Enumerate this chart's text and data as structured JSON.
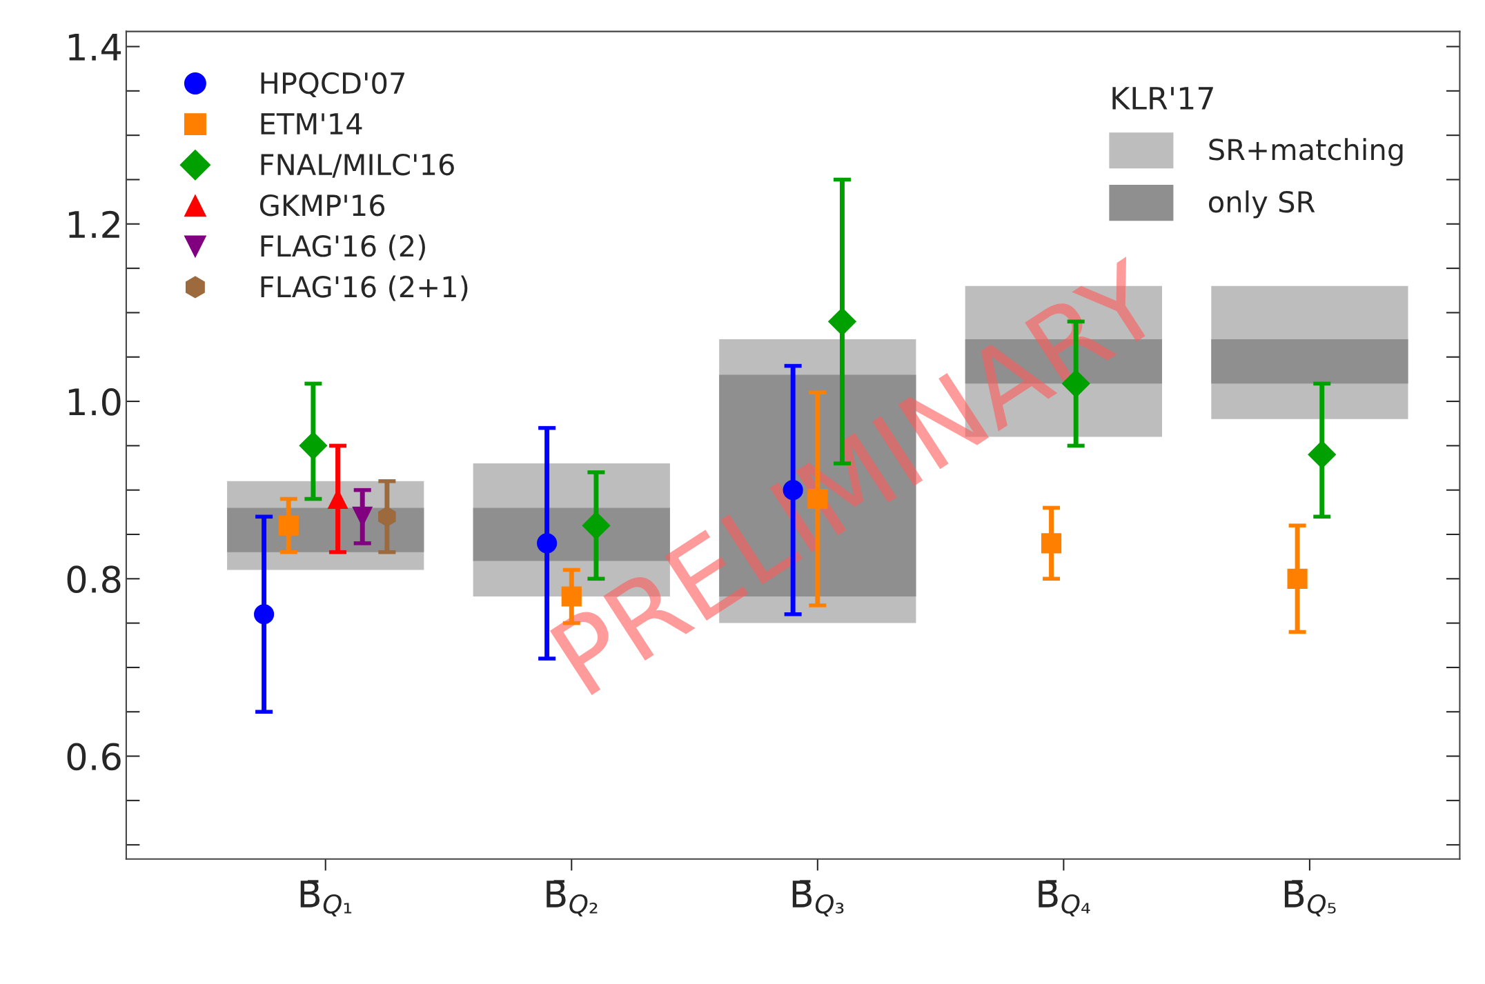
{
  "chart_data": {
    "type": "scatter",
    "categories": [
      "B̄$_{Q₁}$",
      "B̄$_{Q₂}$",
      "B̄$_{Q₃}$",
      "B̄$_{Q₄}$",
      "B̄$_{Q₅}$"
    ],
    "series": [
      {
        "name": "SR+matching",
        "type": "bar",
        "color": "#bdbdbd",
        "base": [
          0.81,
          0.78,
          0.75,
          0.96,
          0.98
        ],
        "values": [
          0.1,
          0.15,
          0.32,
          0.17,
          0.15
        ]
      },
      {
        "name": "only SR",
        "type": "bar",
        "color": "#8f8f8f",
        "base": [
          0.83,
          0.82,
          0.78,
          1.02,
          1.02
        ],
        "values": [
          0.05,
          0.06,
          0.25,
          0.05,
          0.05
        ]
      },
      {
        "name": "HPQCD'07",
        "marker": "circle",
        "color": "#0000ff",
        "values": [
          0.76,
          0.84,
          0.9,
          null,
          null
        ],
        "errors": [
          [
            0.65,
            0.87
          ],
          [
            0.71,
            0.97
          ],
          [
            0.76,
            1.04
          ],
          null,
          null
        ]
      },
      {
        "name": "ETM'14",
        "marker": "square",
        "color": "#ff8000",
        "values": [
          0.86,
          0.78,
          0.89,
          0.84,
          0.8
        ],
        "errors": [
          [
            0.83,
            0.89
          ],
          [
            0.75,
            0.81
          ],
          [
            0.77,
            1.01
          ],
          [
            0.8,
            0.88
          ],
          [
            0.74,
            0.86
          ]
        ]
      },
      {
        "name": "FNAL/MILC'16",
        "marker": "diamond",
        "color": "#00a000",
        "values": [
          0.95,
          0.86,
          1.09,
          1.02,
          0.94
        ],
        "errors": [
          [
            0.89,
            1.02
          ],
          [
            0.8,
            0.92
          ],
          [
            0.93,
            1.25
          ],
          [
            0.95,
            1.09
          ],
          [
            0.87,
            1.02
          ]
        ]
      },
      {
        "name": "GKMP'16",
        "marker": "triangle",
        "color": "#ff0000",
        "values": [
          0.89,
          null,
          null,
          null,
          null
        ],
        "errors": [
          [
            0.83,
            0.95
          ],
          null,
          null,
          null,
          null
        ]
      },
      {
        "name": "FLAG'16 (2)",
        "marker": "triangle_down",
        "color": "#800080",
        "values": [
          0.87,
          null,
          null,
          null,
          null
        ],
        "errors": [
          [
            0.84,
            0.9
          ],
          null,
          null,
          null,
          null
        ]
      },
      {
        "name": "FLAG'16 (2+1)",
        "color": "#9c6a3c",
        "values": [
          0.87,
          null,
          null,
          null,
          null
        ],
        "errors": [
          [
            0.83,
            0.91
          ],
          null,
          null,
          null,
          null
        ]
      }
    ],
    "legend_title": "KLR'17",
    "legend": "top left",
    "ylim": [
      0.484,
      1.417
    ],
    "yticks": [
      0.6,
      0.8,
      {
        "value": 1.0,
        "label": "1.0"
      },
      1.2,
      1.4
    ],
    "grid": false,
    "annotations": [
      "PRELIMINARY"
    ]
  }
}
